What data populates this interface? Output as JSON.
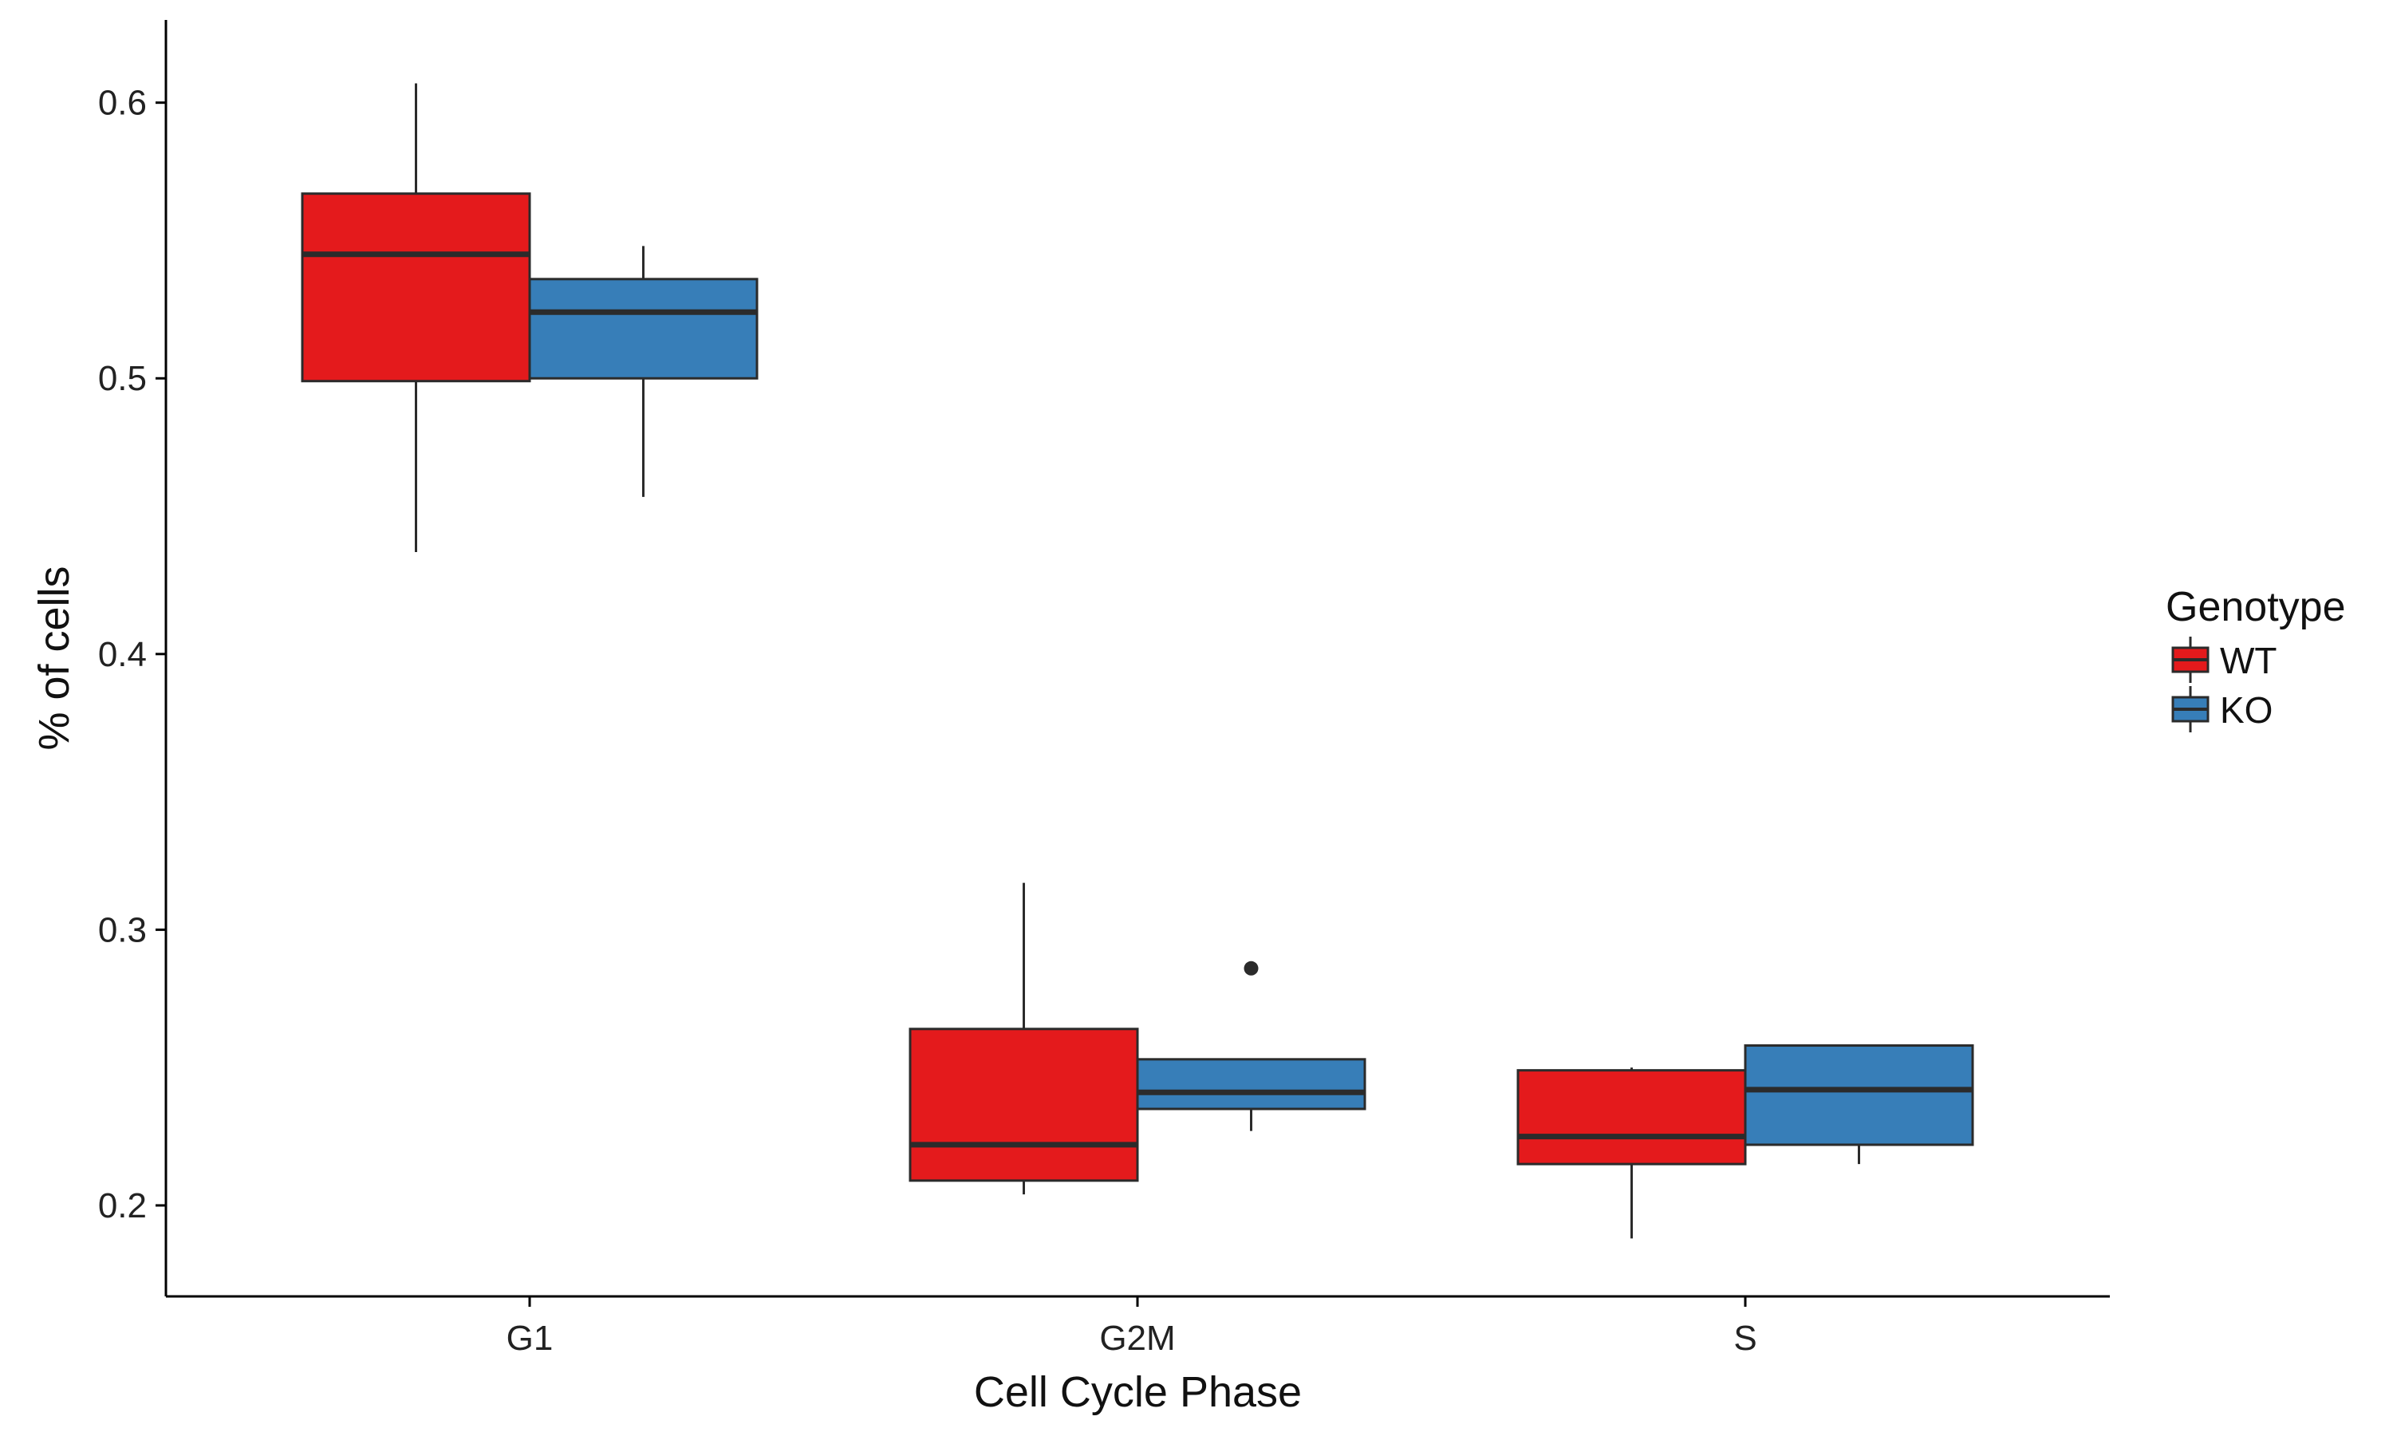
{
  "chart_data": {
    "type": "boxplot",
    "title": "",
    "xlabel": "Cell Cycle Phase",
    "ylabel": "% of cells",
    "ylim": [
      0.167,
      0.63
    ],
    "yticks": [
      0.2,
      0.3,
      0.4,
      0.5,
      0.6
    ],
    "ytick_labels": [
      "0.2",
      "0.3",
      "0.4",
      "0.5",
      "0.6"
    ],
    "categories": [
      "G1",
      "G2M",
      "S"
    ],
    "grid": false,
    "legend": {
      "title": "Genotype",
      "position": "right"
    },
    "series": [
      {
        "name": "WT",
        "color": "#e41a1c",
        "boxes": [
          {
            "category": "G1",
            "whisker_low": 0.437,
            "q1": 0.499,
            "median": 0.545,
            "q3": 0.567,
            "whisker_high": 0.607,
            "outliers": []
          },
          {
            "category": "G2M",
            "whisker_low": 0.204,
            "q1": 0.209,
            "median": 0.222,
            "q3": 0.264,
            "whisker_high": 0.317,
            "outliers": []
          },
          {
            "category": "S",
            "whisker_low": 0.188,
            "q1": 0.215,
            "median": 0.225,
            "q3": 0.249,
            "whisker_high": 0.25,
            "outliers": []
          }
        ]
      },
      {
        "name": "KO",
        "color": "#377eb8",
        "boxes": [
          {
            "category": "G1",
            "whisker_low": 0.457,
            "q1": 0.5,
            "median": 0.524,
            "q3": 0.536,
            "whisker_high": 0.548,
            "outliers": []
          },
          {
            "category": "G2M",
            "whisker_low": 0.227,
            "q1": 0.235,
            "median": 0.241,
            "q3": 0.253,
            "whisker_high": 0.253,
            "outliers": [
              0.286
            ]
          },
          {
            "category": "S",
            "whisker_low": 0.215,
            "q1": 0.222,
            "median": 0.242,
            "q3": 0.258,
            "whisker_high": 0.258,
            "outliers": []
          }
        ]
      }
    ]
  }
}
